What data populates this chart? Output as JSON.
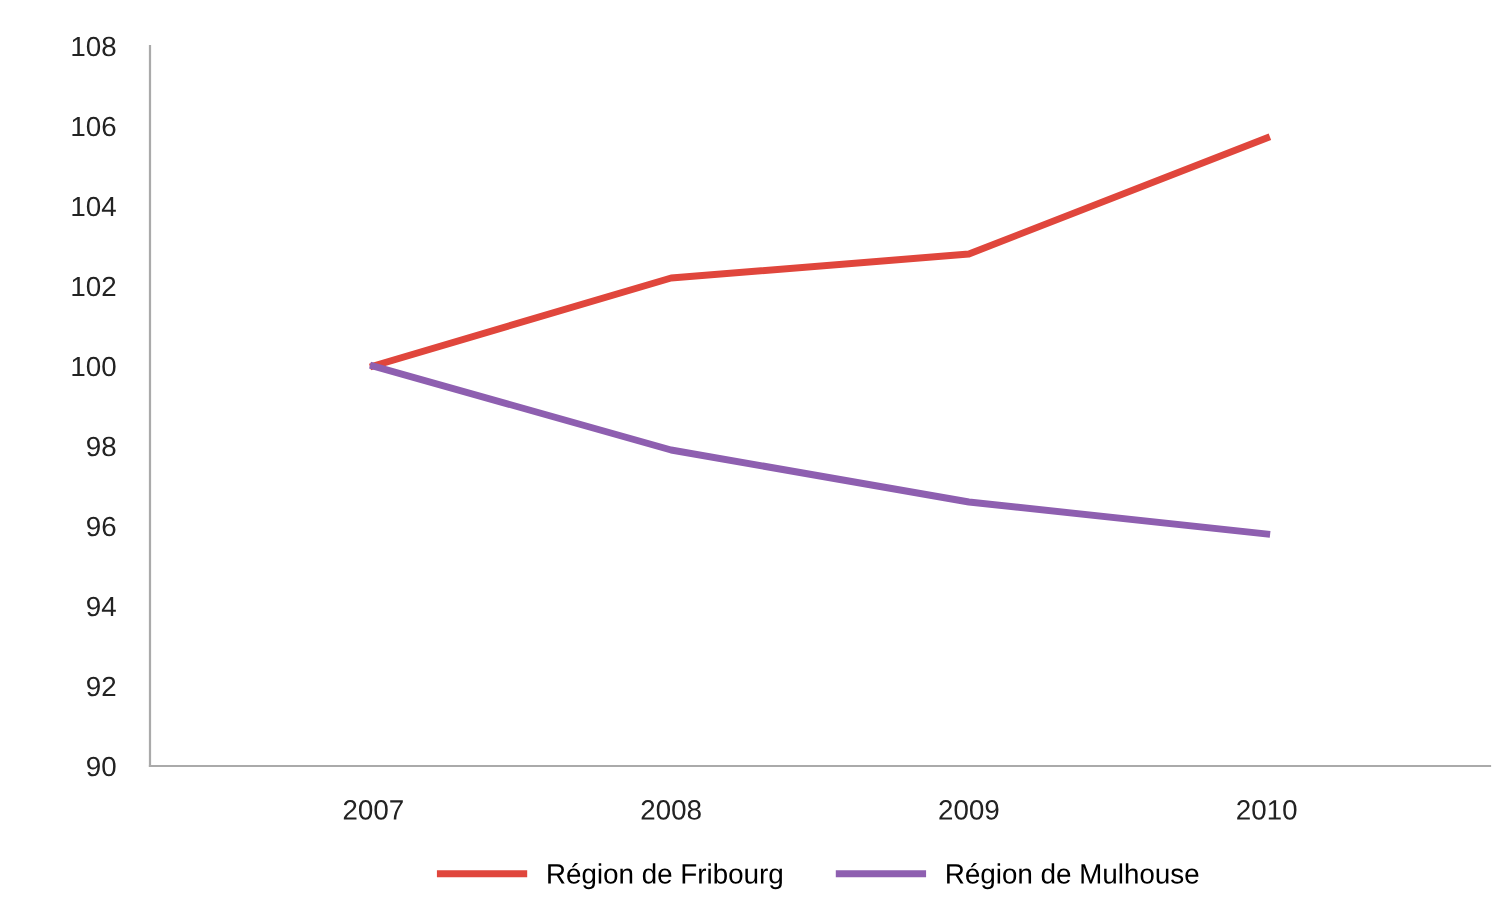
{
  "chart_data": {
    "type": "line",
    "categories": [
      "2007",
      "2008",
      "2009",
      "2010"
    ],
    "series": [
      {
        "name": "Région de Fribourg",
        "color": "#e0463c",
        "values": [
          100,
          102.2,
          102.8,
          105.7
        ]
      },
      {
        "name": "Région de Mulhouse",
        "color": "#8e5fb0",
        "values": [
          100,
          97.9,
          96.6,
          95.8
        ]
      }
    ],
    "ylim": [
      90,
      108
    ],
    "yticks": [
      90,
      92,
      94,
      96,
      98,
      100,
      102,
      104,
      106,
      108
    ],
    "grid": false,
    "legend": "bottom",
    "marker": "none",
    "line_style": "solid"
  }
}
